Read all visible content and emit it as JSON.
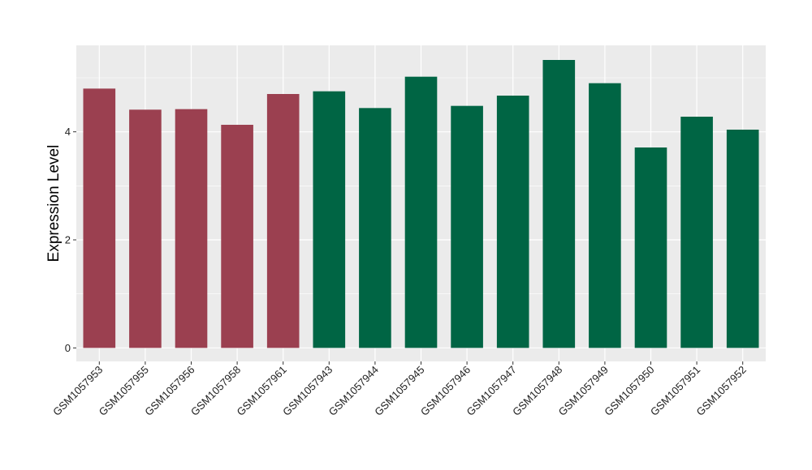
{
  "chart_data": {
    "type": "bar",
    "title": "",
    "xlabel": "",
    "ylabel": "Expression Level",
    "ylim": [
      -0.25,
      5.6
    ],
    "yticks": [
      0,
      2,
      4
    ],
    "grid": true,
    "legend": "none",
    "categories": [
      "GSM1057953",
      "GSM1057955",
      "GSM1057956",
      "GSM1057958",
      "GSM1057961",
      "GSM1057943",
      "GSM1057944",
      "GSM1057945",
      "GSM1057946",
      "GSM1057947",
      "GSM1057948",
      "GSM1057949",
      "GSM1057950",
      "GSM1057951",
      "GSM1057952"
    ],
    "values": [
      4.8,
      4.41,
      4.42,
      4.13,
      4.7,
      4.75,
      4.44,
      5.02,
      4.48,
      4.67,
      5.33,
      4.9,
      3.71,
      4.28,
      4.04
    ],
    "groups": [
      "a",
      "a",
      "a",
      "a",
      "a",
      "b",
      "b",
      "b",
      "b",
      "b",
      "b",
      "b",
      "b",
      "b",
      "b"
    ],
    "group_colors": {
      "a": "#9b4050",
      "b": "#006544"
    },
    "panel_color": "#ebebeb",
    "grid_color": "#ffffff"
  }
}
